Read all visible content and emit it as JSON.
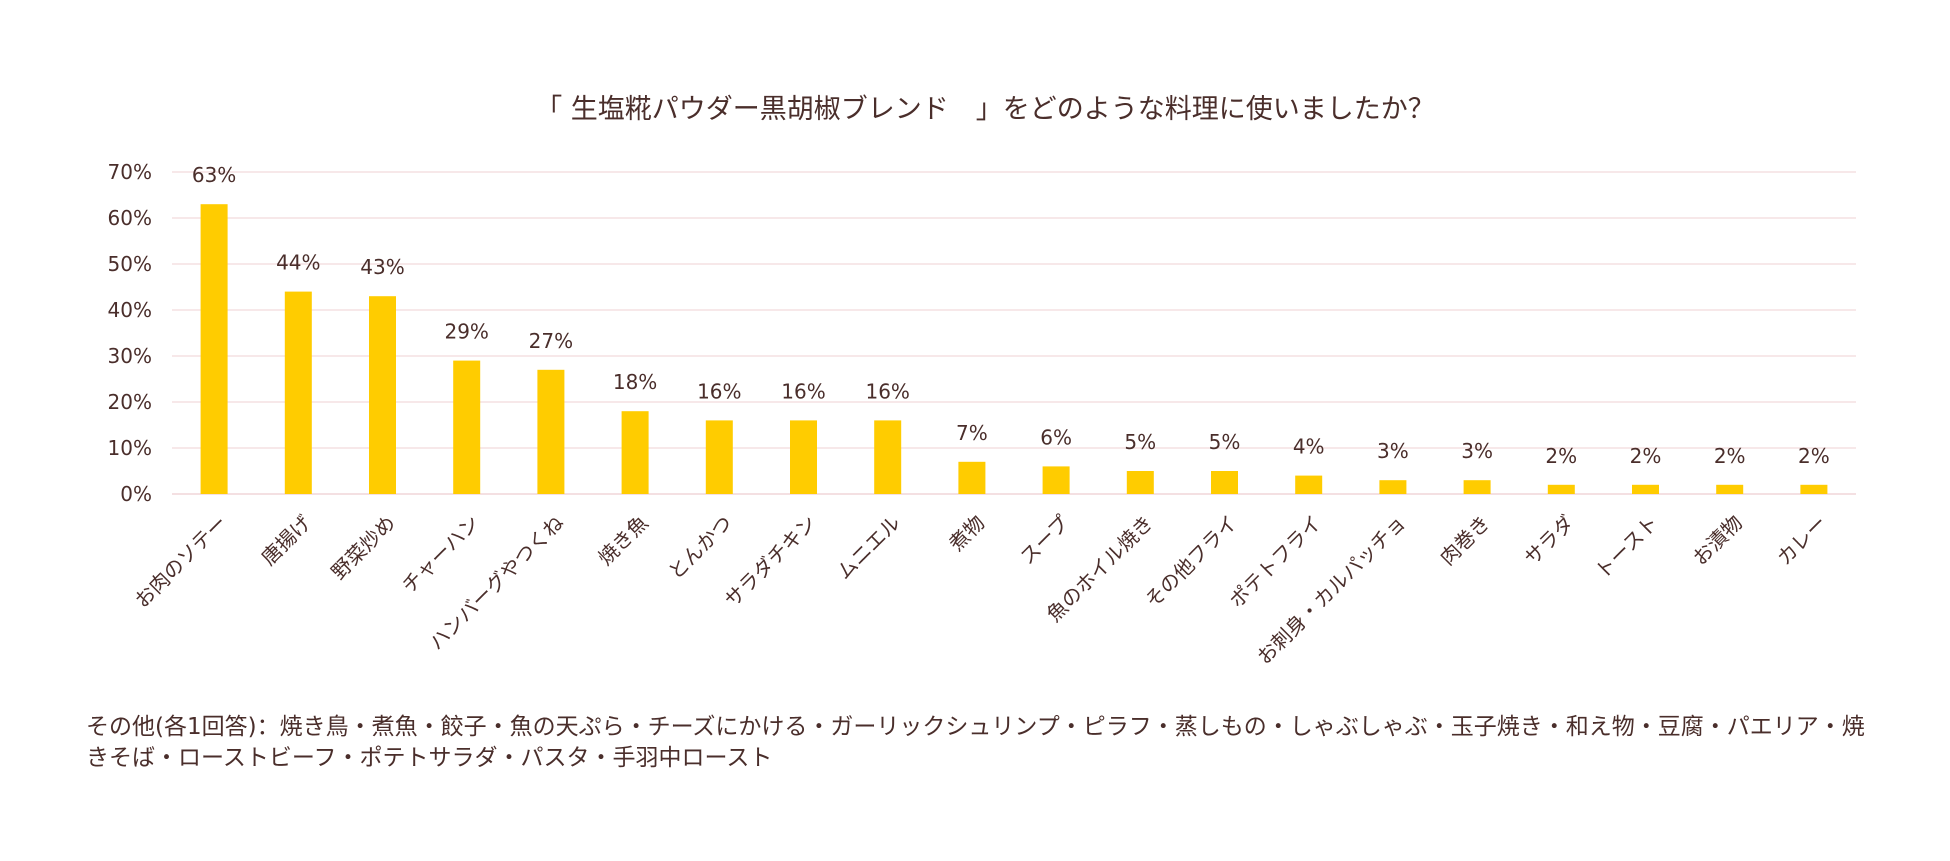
{
  "chart_data": {
    "type": "bar",
    "title": "「 生塩糀パウダー黒胡椒ブレンド　」をどのような料理に使いましたか？",
    "categories": [
      "お肉のソテー",
      "唐揚げ",
      "野菜炒め",
      "チャーハン",
      "ハンバーグやつくね",
      "焼き魚",
      "とんかつ",
      "サラダチキン",
      "ムニエル",
      "煮物",
      "スープ",
      "魚のホイル焼き",
      "その他フライ",
      "ポテトフライ",
      "お刺身・カルパッチョ",
      "肉巻き",
      "サラダ",
      "トースト",
      "お漬物",
      "カレー"
    ],
    "values": [
      63,
      44,
      43,
      29,
      27,
      18,
      16,
      16,
      16,
      7,
      6,
      5,
      5,
      4,
      3,
      3,
      2,
      2,
      2,
      2
    ],
    "data_labels": [
      "63%",
      "44%",
      "43%",
      "29%",
      "27%",
      "18%",
      "16%",
      "16%",
      "16%",
      "7%",
      "6%",
      "5%",
      "5%",
      "4%",
      "3%",
      "3%",
      "2%",
      "2%",
      "2%",
      "2%"
    ],
    "y_ticks": [
      "0%",
      "10%",
      "20%",
      "30%",
      "40%",
      "50%",
      "60%",
      "70%"
    ],
    "ylim": [
      0,
      70
    ],
    "xlabel": "",
    "ylabel": "",
    "grid": true,
    "legend": "none",
    "bar_color": "#ffcc00",
    "grid_color": "#f2d9dc",
    "text_color": "#4a2e2b"
  },
  "footnote": "その他(各1回答)：焼き鳥・煮魚・餃子・魚の天ぷら・チーズにかける・ガーリックシュリンプ・ピラフ・蒸しもの・しゃぶしゃぶ・玉子焼き・和え物・豆腐・パエリア・焼きそば・ローストビーフ・ポテトサラダ・パスタ・手羽中ロースト"
}
